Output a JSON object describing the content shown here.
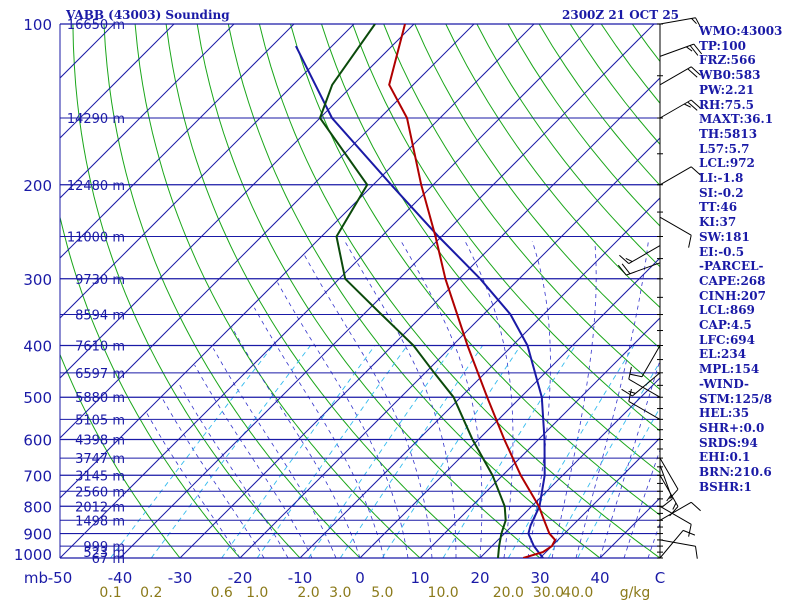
{
  "header": {
    "station": "VABB (43003) Sounding",
    "time": "2300Z 21 OCT 25"
  },
  "stats": [
    "WMO:43003",
    "TP:100",
    "FRZ:566",
    "WB0:583",
    "PW:2.21",
    "RH:75.5",
    "MAXT:36.1",
    "TH:5813",
    "L57:5.7",
    "LCL:972",
    "LI:-1.8",
    "SI:-0.2",
    "TT:46",
    "KI:37",
    "SW:181",
    "EI:-0.5",
    "-PARCEL-",
    "CAPE:268",
    "CINH:207",
    "LCL:869",
    "CAP:4.5",
    "LFC:694",
    "EL:234",
    "MPL:154",
    "-WIND-",
    "STM:125/8",
    "HEL:35",
    "SHR+:0.0",
    "SRDS:94",
    "EHI:0.1",
    "BRN:210.6",
    "BSHR:1"
  ],
  "colors": {
    "isobar": "#1a1aa6",
    "isotherm": "#1a1aa6",
    "dry_adiabat": "#1aa61a",
    "moist_adiabat": "#3333cc",
    "mixing_ratio": "#33bbee",
    "text_blue": "#1a1aa6",
    "mix_label": "#8b7a1a",
    "temperature": "#b00000",
    "dewpoint": "#0b4a0b",
    "parcel": "#1a1aa6",
    "wind": "#000000"
  },
  "chart_data": {
    "type": "skew-t log-p sounding",
    "title": "VABB (43003) Sounding",
    "xlabel": "",
    "ylabel": "mb",
    "x_unit": "C",
    "pressure_range_mb": [
      1000,
      100
    ],
    "temperature_range_c": [
      -50,
      50
    ],
    "pressure_ticks": [
      100,
      200,
      300,
      400,
      500,
      600,
      700,
      800,
      900,
      1000
    ],
    "temperature_ticks": [
      -50,
      -40,
      -30,
      -20,
      -10,
      0,
      10,
      20,
      30,
      40
    ],
    "temperature_tick_labels": [
      "-50",
      "-40",
      "-30",
      "-20",
      "-10",
      "0",
      "10",
      "20",
      "30",
      "40",
      "C"
    ],
    "axis_corner_label": "mb",
    "mixing_ratio_ticks": [
      0.1,
      0.2,
      0.6,
      1.0,
      2.0,
      3.0,
      5.0,
      10.0,
      20.0,
      30.0,
      40.0
    ],
    "mixing_ratio_labels": [
      "0.1",
      "0.2",
      "0.6",
      "1.0",
      "2.0",
      "3.0",
      "5.0",
      "10.0",
      "20.0",
      "30.0",
      "40.0"
    ],
    "mixing_ratio_unit": "g/kg",
    "height_labels": [
      {
        "p": 1000,
        "label": "67 m"
      },
      {
        "p": 975,
        "label": "523 m"
      },
      {
        "p": 950,
        "label": "999 m"
      },
      {
        "p": 850,
        "label": "1498 m"
      },
      {
        "p": 800,
        "label": "2012 m"
      },
      {
        "p": 750,
        "label": "2560 m"
      },
      {
        "p": 700,
        "label": "3145 m"
      },
      {
        "p": 650,
        "label": "3747 m"
      },
      {
        "p": 600,
        "label": "4398 m"
      },
      {
        "p": 550,
        "label": "5105 m"
      },
      {
        "p": 500,
        "label": "5880 m"
      },
      {
        "p": 450,
        "label": "6597 m"
      },
      {
        "p": 400,
        "label": "7610 m"
      },
      {
        "p": 350,
        "label": "8594 m"
      },
      {
        "p": 300,
        "label": "9730 m"
      },
      {
        "p": 250,
        "label": "11000 m"
      },
      {
        "p": 200,
        "label": "12480 m"
      },
      {
        "p": 150,
        "label": "14290 m"
      },
      {
        "p": 100,
        "label": "16650 m"
      }
    ],
    "temperature_profile": [
      {
        "p": 1000,
        "t": 27.2
      },
      {
        "p": 975,
        "t": 29.5
      },
      {
        "p": 950,
        "t": 30.0
      },
      {
        "p": 925,
        "t": 29.5
      },
      {
        "p": 900,
        "t": 27.5
      },
      {
        "p": 850,
        "t": 24.4
      },
      {
        "p": 800,
        "t": 21.2
      },
      {
        "p": 700,
        "t": 13.0
      },
      {
        "p": 600,
        "t": 4.3
      },
      {
        "p": 500,
        "t": -5.6
      },
      {
        "p": 400,
        "t": -17.5
      },
      {
        "p": 300,
        "t": -32.3
      },
      {
        "p": 250,
        "t": -41.0
      },
      {
        "p": 200,
        "t": -52.0
      },
      {
        "p": 150,
        "t": -65.5
      },
      {
        "p": 130,
        "t": -74.0
      },
      {
        "p": 100,
        "t": -81.5
      }
    ],
    "dewpoint_profile": [
      {
        "p": 1000,
        "td": 23.0
      },
      {
        "p": 950,
        "td": 21.2
      },
      {
        "p": 900,
        "td": 19.5
      },
      {
        "p": 850,
        "td": 18.0
      },
      {
        "p": 800,
        "td": 15.5
      },
      {
        "p": 700,
        "td": 8.3
      },
      {
        "p": 600,
        "td": -1.0
      },
      {
        "p": 500,
        "td": -11.2
      },
      {
        "p": 450,
        "td": -18.5
      },
      {
        "p": 400,
        "td": -26.5
      },
      {
        "p": 350,
        "td": -37.0
      },
      {
        "p": 300,
        "td": -49.0
      },
      {
        "p": 250,
        "td": -57.5
      },
      {
        "p": 200,
        "td": -61.0
      },
      {
        "p": 150,
        "td": -80.0
      },
      {
        "p": 130,
        "td": -83.5
      },
      {
        "p": 100,
        "td": -86.5
      }
    ],
    "parcel_profile": [
      {
        "p": 1000,
        "t": 30.5
      },
      {
        "p": 950,
        "t": 27.0
      },
      {
        "p": 900,
        "t": 24.0
      },
      {
        "p": 869,
        "t": 23.0
      },
      {
        "p": 800,
        "t": 21.3
      },
      {
        "p": 700,
        "t": 17.0
      },
      {
        "p": 600,
        "t": 11.0
      },
      {
        "p": 500,
        "t": 3.5
      },
      {
        "p": 400,
        "t": -7.5
      },
      {
        "p": 350,
        "t": -15.5
      },
      {
        "p": 300,
        "t": -26.5
      },
      {
        "p": 250,
        "t": -40.5
      },
      {
        "p": 200,
        "t": -57.0
      },
      {
        "p": 150,
        "t": -78.0
      },
      {
        "p": 110,
        "t": -96.0
      }
    ],
    "wind_barbs": [
      {
        "p": 100,
        "dir": 80,
        "spd": 15
      },
      {
        "p": 115,
        "dir": 70,
        "spd": 25
      },
      {
        "p": 130,
        "dir": 60,
        "spd": 20
      },
      {
        "p": 150,
        "dir": 60,
        "spd": 25
      },
      {
        "p": 200,
        "dir": 60,
        "spd": 10
      },
      {
        "p": 230,
        "dir": 120,
        "spd": 10
      },
      {
        "p": 260,
        "dir": 240,
        "spd": 15
      },
      {
        "p": 280,
        "dir": 250,
        "spd": 20
      },
      {
        "p": 400,
        "dir": 210,
        "spd": 10
      },
      {
        "p": 450,
        "dir": 230,
        "spd": 15
      },
      {
        "p": 500,
        "dir": 300,
        "spd": 10
      },
      {
        "p": 550,
        "dir": 300,
        "spd": 10
      },
      {
        "p": 650,
        "dir": 150,
        "spd": 10
      },
      {
        "p": 670,
        "dir": 160,
        "spd": 15
      },
      {
        "p": 700,
        "dir": 150,
        "spd": 15
      },
      {
        "p": 800,
        "dir": 120,
        "spd": 10
      },
      {
        "p": 850,
        "dir": 60,
        "spd": 10
      },
      {
        "p": 925,
        "dir": 100,
        "spd": 10
      },
      {
        "p": 1000,
        "dir": 40,
        "spd": 10
      }
    ]
  }
}
